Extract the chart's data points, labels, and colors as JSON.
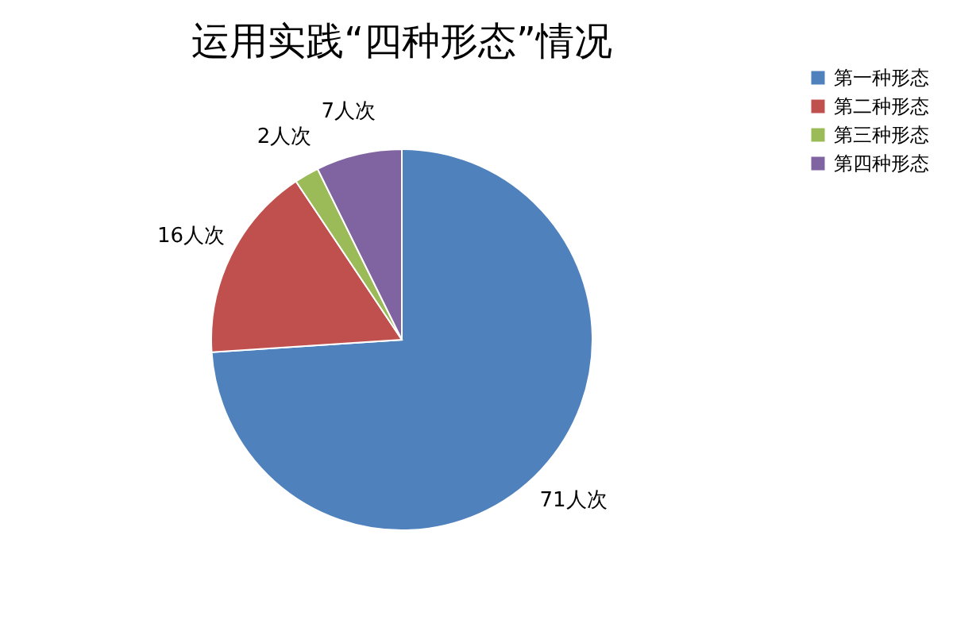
{
  "chart_data": {
    "type": "pie",
    "title": "运用实践“四种形态”情况",
    "categories": [
      "第一种形态",
      "第二种形态",
      "第三种形态",
      "第四种形态"
    ],
    "values": [
      71,
      16,
      2,
      7
    ],
    "colors": [
      "#4f81bd",
      "#c0504d",
      "#9bbb59",
      "#8064a2"
    ],
    "value_labels": [
      "71人次",
      "16人次",
      "2人次",
      "7人次"
    ],
    "legend": "right"
  }
}
